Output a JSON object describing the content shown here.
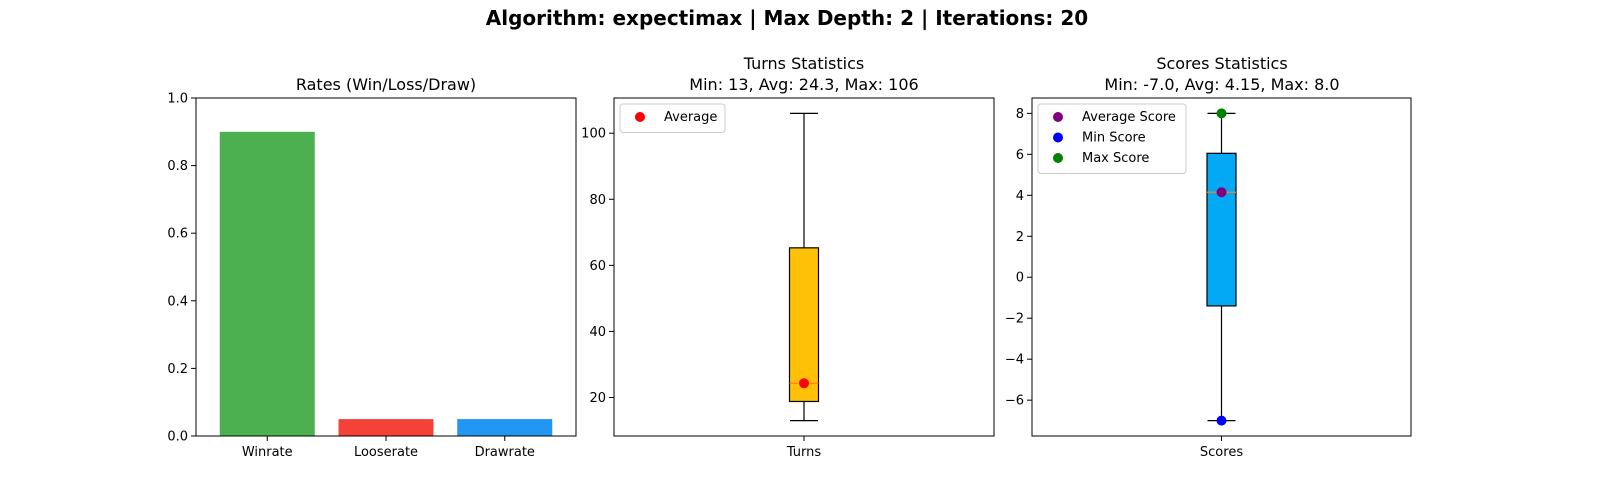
{
  "figure": {
    "suptitle": "Algorithm: expectimax | Max Depth: 2 | Iterations: 20"
  },
  "chart_data": [
    {
      "type": "bar",
      "title": "Rates (Win/Loss/Draw)",
      "categories": [
        "Winrate",
        "Looserate",
        "Drawrate"
      ],
      "values": [
        0.9,
        0.05,
        0.05
      ],
      "colors": [
        "#4caf50",
        "#f44336",
        "#2196f3"
      ],
      "ylim": [
        0,
        1.0
      ],
      "yticks": [
        0.0,
        0.2,
        0.4,
        0.6,
        0.8,
        1.0
      ],
      "ytick_labels": [
        "0.0",
        "0.2",
        "0.4",
        "0.6",
        "0.8",
        "1.0"
      ],
      "grid": false
    },
    {
      "type": "box",
      "title": "Turns Statistics",
      "subtitle": "Min: 13, Avg: 24.3, Max: 106",
      "category": "Turns",
      "box": {
        "whisker_low": 13,
        "q1": 18.8,
        "median": 24.3,
        "q3": 65.3,
        "whisker_high": 106
      },
      "box_color": "#ffc107",
      "median_color": "#ff7f0e",
      "ylim": [
        8.35,
        110.65
      ],
      "yticks": [
        20,
        40,
        60,
        80,
        100
      ],
      "ytick_labels": [
        "20",
        "40",
        "60",
        "80",
        "100"
      ],
      "points": [
        {
          "name": "Average",
          "value": 24.3,
          "color": "#ff0000"
        }
      ],
      "legend": {
        "location": "upper left",
        "entries": [
          {
            "label": "Average",
            "color": "#ff0000"
          }
        ]
      },
      "grid": false
    },
    {
      "type": "box",
      "title": "Scores Statistics",
      "subtitle": "Min: -7.0, Avg: 4.15, Max: 8.0",
      "category": "Scores",
      "box": {
        "whisker_low": -7.0,
        "q1": -1.4,
        "median": 4.15,
        "q3": 6.05,
        "whisker_high": 8.0
      },
      "box_color": "#03a9f4",
      "median_color": "#ff7f0e",
      "ylim": [
        -7.75,
        8.75
      ],
      "yticks": [
        -6,
        -4,
        -2,
        0,
        2,
        4,
        6,
        8
      ],
      "ytick_labels": [
        "−6",
        "−4",
        "−2",
        "0",
        "2",
        "4",
        "6",
        "8"
      ],
      "points": [
        {
          "name": "Average Score",
          "value": 4.15,
          "color": "#800080"
        },
        {
          "name": "Min Score",
          "value": -7.0,
          "color": "#0000ff"
        },
        {
          "name": "Max Score",
          "value": 8.0,
          "color": "#008000"
        }
      ],
      "legend": {
        "location": "upper left",
        "entries": [
          {
            "label": "Average Score",
            "color": "#800080"
          },
          {
            "label": "Min Score",
            "color": "#0000ff"
          },
          {
            "label": "Max Score",
            "color": "#008000"
          }
        ]
      },
      "grid": false
    }
  ]
}
